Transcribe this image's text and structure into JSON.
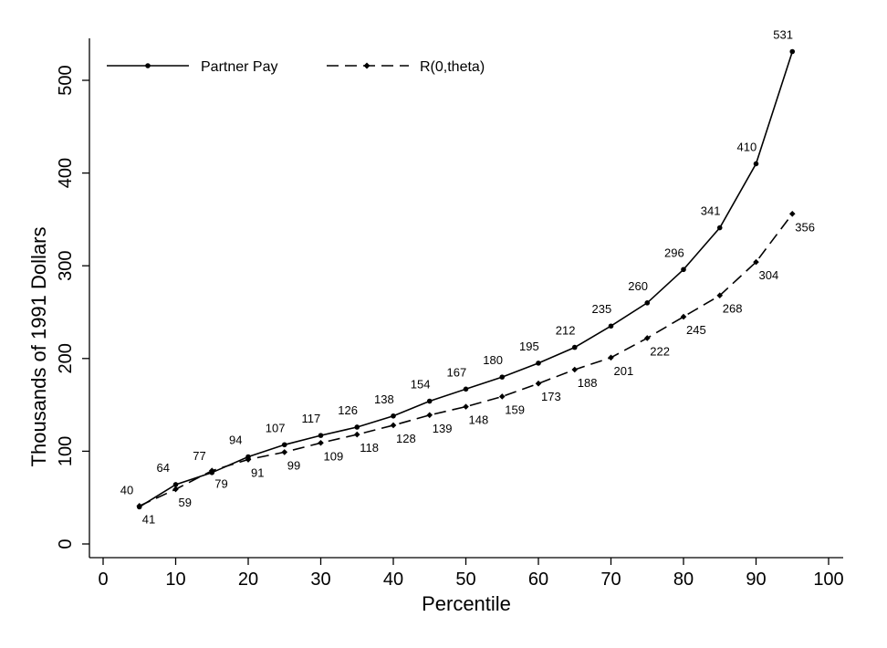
{
  "chart_data": {
    "type": "line",
    "title": "",
    "xlabel": "Percentile",
    "ylabel": "Thousands of 1991 Dollars",
    "xlim": [
      0,
      100
    ],
    "ylim": [
      0,
      531
    ],
    "xticks": [
      0,
      10,
      20,
      30,
      40,
      50,
      60,
      70,
      80,
      90,
      100
    ],
    "yticks": [
      0,
      100,
      200,
      300,
      400,
      500
    ],
    "grid": false,
    "legend_position": "top-left",
    "x": [
      5,
      10,
      15,
      20,
      25,
      30,
      35,
      40,
      45,
      50,
      55,
      60,
      65,
      70,
      75,
      80,
      85,
      90,
      95
    ],
    "series": [
      {
        "name": "Partner Pay",
        "style": "solid",
        "marker": "circle",
        "color": "#000000",
        "label_side": "above",
        "values": [
          40,
          64,
          77,
          94,
          107,
          117,
          126,
          138,
          154,
          167,
          180,
          195,
          212,
          235,
          260,
          296,
          341,
          410,
          531
        ],
        "labels": [
          "40",
          "64",
          "77",
          "94",
          "107",
          "117",
          "126",
          "138",
          "154",
          "167",
          "180",
          "195",
          "212",
          "235",
          "260",
          "296",
          "341",
          "410",
          "531"
        ]
      },
      {
        "name": "R(0,theta)",
        "style": "dashed",
        "marker": "diamond",
        "color": "#000000",
        "label_side": "below",
        "values": [
          41,
          59,
          79,
          91,
          99,
          109,
          118,
          128,
          139,
          148,
          159,
          173,
          188,
          201,
          222,
          245,
          268,
          304,
          356
        ],
        "labels": [
          "41",
          "59",
          "79",
          "91",
          "99",
          "109",
          "118",
          "128",
          "139",
          "148",
          "159",
          "173",
          "188",
          "201",
          "222",
          "245",
          "268",
          "304",
          "356"
        ]
      }
    ]
  }
}
